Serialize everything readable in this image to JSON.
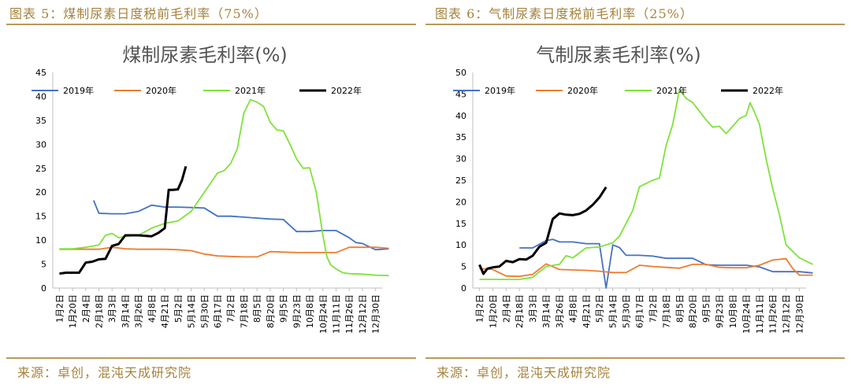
{
  "left": {
    "caption": "图表 5：煤制尿素日度税前毛利率（75%）",
    "source": "来源：卓创，混沌天成研究院"
  },
  "right": {
    "caption": "图表 6：气制尿素日度税前毛利率（25%）",
    "source": "来源：卓创，混沌天成研究院"
  },
  "chart_data": [
    {
      "type": "line",
      "title": "煤制尿素毛利率(%)",
      "ylim": [
        0,
        45
      ],
      "yticks": [
        "0",
        "5",
        "10",
        "15",
        "20",
        "25",
        "30",
        "35",
        "40",
        "45"
      ],
      "xticks": [
        "1月2日",
        "1月20日",
        "2月4日",
        "2月18日",
        "3月3日",
        "3月14日",
        "3月26日",
        "4月8日",
        "4月21日",
        "5月2日",
        "5月14日",
        "5月30日",
        "6月17日",
        "7月2日",
        "7月18日",
        "8月5日",
        "8月20日",
        "9月5日",
        "9月23日",
        "10月8日",
        "10月24日",
        "11月11日",
        "11月26日",
        "12月12日",
        "12月30日"
      ],
      "legend_position": "top",
      "series": [
        {
          "name": "2019年",
          "color": "#4472c4",
          "x": [
            2.6,
            3,
            4,
            5,
            6,
            7,
            8,
            9,
            10,
            11,
            12,
            13,
            14,
            15,
            16,
            17,
            18,
            19,
            20,
            21,
            22,
            22.5,
            23,
            24,
            25
          ],
          "values": [
            18.3,
            15.6,
            15.5,
            15.5,
            16,
            17.3,
            16.9,
            16.9,
            16.8,
            16.7,
            15,
            15,
            14.8,
            14.6,
            14.4,
            14.3,
            11.8,
            11.8,
            12,
            12,
            10.5,
            9.5,
            9.3,
            8,
            8.2
          ]
        },
        {
          "name": "2020年",
          "color": "#ed7d31",
          "x": [
            0,
            1,
            2,
            3,
            4,
            5,
            6,
            7,
            8,
            9,
            10,
            11,
            12,
            13,
            14,
            15,
            16,
            17,
            18,
            19,
            20,
            21,
            22,
            23,
            24,
            25
          ],
          "values": [
            8.1,
            8.1,
            8.1,
            8.1,
            8.5,
            8.2,
            8.1,
            8.1,
            8.1,
            8,
            7.8,
            7.1,
            6.7,
            6.6,
            6.5,
            6.5,
            7.6,
            7.5,
            7.4,
            7.4,
            7.4,
            7.4,
            8.5,
            8.5,
            8.5,
            8.3
          ]
        },
        {
          "name": "2021年",
          "color": "#7fe23a",
          "x": [
            0,
            1,
            2,
            3,
            3.5,
            4,
            4.5,
            5,
            6,
            7,
            8,
            9,
            10,
            11,
            12,
            12.5,
            13,
            13.5,
            14,
            14.5,
            15,
            15.5,
            16,
            16.5,
            17,
            17.5,
            18,
            18.5,
            19,
            19.5,
            20,
            20.3,
            20.6,
            21,
            21.5,
            22,
            23,
            24,
            25
          ],
          "values": [
            8.2,
            8.2,
            8.5,
            9,
            11,
            11.4,
            10.5,
            10.8,
            11,
            12.5,
            13.5,
            14,
            16,
            20,
            24,
            24.5,
            26,
            29,
            36.5,
            39.3,
            38.8,
            37.9,
            34.6,
            33,
            32.8,
            30,
            27,
            25,
            25.1,
            20,
            11,
            6.5,
            4.8,
            4,
            3.2,
            3,
            2.9,
            2.7,
            2.6
          ]
        },
        {
          "name": "2022年",
          "color": "#000000",
          "x": [
            0,
            0.5,
            1,
            1.5,
            2,
            2.5,
            3,
            3.5,
            4,
            4.5,
            5,
            6,
            7,
            7.5,
            8,
            8.3,
            8.6,
            9,
            9.3,
            9.6
          ],
          "values": [
            3,
            3.2,
            3.2,
            3.2,
            5.3,
            5.5,
            6,
            6.1,
            8.8,
            9.2,
            11,
            11,
            10.8,
            11.5,
            12.5,
            20.5,
            20.5,
            20.6,
            22.5,
            25.4
          ]
        }
      ]
    },
    {
      "type": "line",
      "title": "气制尿素毛利率(%)",
      "ylim": [
        0,
        50
      ],
      "yticks": [
        "0",
        "5",
        "10",
        "15",
        "20",
        "25",
        "30",
        "35",
        "40",
        "45",
        "50"
      ],
      "xticks": [
        "1月2日",
        "1月20日",
        "2月4日",
        "2月18日",
        "3月3日",
        "3月14日",
        "3月26日",
        "4月8日",
        "4月21日",
        "5月2日",
        "5月14日",
        "5月30日",
        "6月17日",
        "7月2日",
        "7月18日",
        "8月5日",
        "8月20日",
        "9月5日",
        "9月23日",
        "10月8日",
        "10月24日",
        "11月11日",
        "11月26日",
        "12月12日",
        "12月30日"
      ],
      "legend_position": "top",
      "series": [
        {
          "name": "2019年",
          "color": "#4472c4",
          "x": [
            3,
            4,
            5,
            5.5,
            6,
            7,
            8,
            9,
            9.5,
            10,
            10.5,
            11,
            12,
            13,
            14,
            15,
            16,
            17,
            18,
            19,
            20,
            21,
            22,
            23,
            24,
            25
          ],
          "values": [
            9.3,
            9.3,
            11,
            11.3,
            10.7,
            10.7,
            10.3,
            10.3,
            0,
            10,
            9.4,
            7.6,
            7.6,
            7.4,
            6.9,
            6.9,
            6.9,
            5.4,
            5.3,
            5.3,
            5.3,
            4.9,
            3.8,
            3.8,
            3.8,
            3.5
          ]
        },
        {
          "name": "2020年",
          "color": "#ed7d31",
          "x": [
            0,
            1,
            2,
            3,
            4,
            5,
            6,
            7,
            8,
            9,
            10,
            11,
            12,
            13,
            14,
            15,
            16,
            17,
            18,
            19,
            20,
            21,
            22,
            23,
            23.5,
            24,
            25
          ],
          "values": [
            4.5,
            4.3,
            2.8,
            2.7,
            3.2,
            5.6,
            4.3,
            4.2,
            4.1,
            3.9,
            3.6,
            3.6,
            5.3,
            5,
            4.8,
            4.6,
            5.5,
            5.5,
            4.8,
            4.7,
            4.7,
            5.3,
            6.5,
            6.8,
            4.5,
            3,
            3
          ]
        },
        {
          "name": "2021年",
          "color": "#7fe23a",
          "x": [
            0,
            1,
            2,
            3,
            4,
            5,
            6,
            6.5,
            7,
            8,
            9,
            10,
            10.5,
            11,
            11.5,
            12,
            13,
            13.5,
            14,
            14.5,
            15,
            15.5,
            16,
            16.5,
            17,
            17.5,
            18,
            18.5,
            19,
            19.5,
            20,
            20.3,
            20.6,
            21,
            21.5,
            22,
            22.5,
            23,
            24,
            25
          ],
          "values": [
            2,
            2,
            2,
            2,
            2.5,
            5,
            5.5,
            7.5,
            7,
            9.3,
            9.5,
            10.5,
            12,
            15,
            18,
            23.5,
            25,
            25.5,
            33,
            38,
            46,
            44,
            43,
            41,
            39,
            37.3,
            37.5,
            35.8,
            37.5,
            39.3,
            40,
            43,
            41,
            38,
            30,
            23,
            17,
            10,
            7,
            5.5
          ]
        },
        {
          "name": "2022年",
          "color": "#000000",
          "x": [
            0,
            0.3,
            0.6,
            1,
            1.5,
            2,
            2.5,
            3,
            3.5,
            4,
            4.5,
            5,
            5.5,
            6,
            6.5,
            7,
            7.5,
            8,
            8.5,
            9,
            9.5
          ],
          "values": [
            5.4,
            3.3,
            4.5,
            4.8,
            5,
            6.3,
            6,
            6.7,
            6.6,
            7.5,
            9.6,
            10.5,
            16,
            17.3,
            17,
            16.9,
            17.2,
            18,
            19.3,
            21,
            23.4
          ]
        }
      ]
    }
  ]
}
